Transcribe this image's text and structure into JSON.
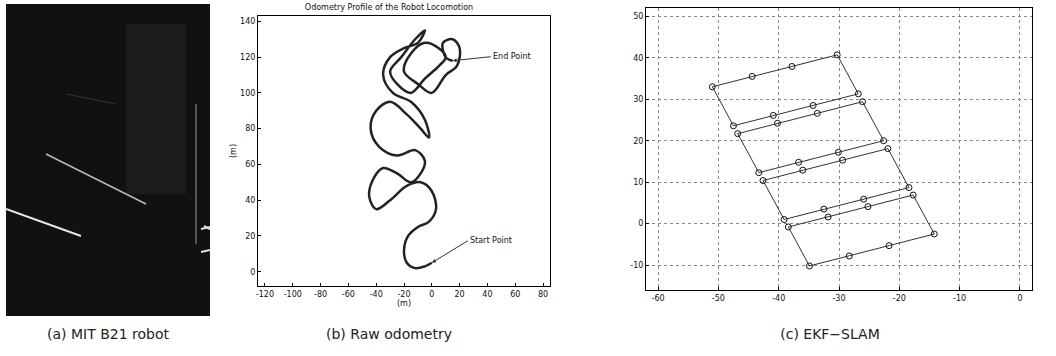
{
  "photo": {
    "caption": "(a) MIT B21 robot"
  },
  "chart_data": [
    {
      "type": "line",
      "title": "Odometry Profile of the Robot Locomotion",
      "caption": "(b) Raw odometry",
      "xlabel": "(m)",
      "ylabel": "(m)",
      "xlim": [
        -125,
        85
      ],
      "ylim": [
        -8,
        143
      ],
      "xticks": [
        -120,
        -100,
        -80,
        -60,
        -40,
        -20,
        0,
        20,
        40,
        60,
        80
      ],
      "yticks": [
        0,
        20,
        40,
        60,
        80,
        100,
        120,
        140
      ],
      "grid": false,
      "series": [
        {
          "color": "#222222",
          "x": [
            0,
            -5,
            -12,
            -18,
            -20,
            -17,
            -10,
            -2,
            3,
            0,
            -8,
            -18,
            -30,
            -40,
            -45,
            -42,
            -35,
            -25,
            -15,
            -8,
            -5,
            -12,
            -25,
            -38,
            -44,
            -40,
            -30,
            -18,
            -8,
            -2,
            -5,
            -15,
            -28,
            -35,
            -30,
            -20,
            -10,
            -5,
            -12,
            -22,
            -30,
            -25,
            -15,
            -5,
            5,
            10,
            5,
            -5,
            -15,
            -20,
            -10,
            0,
            10,
            18,
            20,
            15,
            8,
            10,
            15
          ],
          "y": [
            5,
            3,
            2,
            5,
            12,
            20,
            25,
            28,
            35,
            45,
            50,
            48,
            40,
            35,
            42,
            52,
            58,
            55,
            50,
            55,
            62,
            68,
            65,
            70,
            80,
            90,
            95,
            88,
            80,
            75,
            85,
            95,
            100,
            110,
            120,
            125,
            128,
            135,
            130,
            120,
            112,
            105,
            100,
            108,
            115,
            120,
            125,
            128,
            122,
            112,
            105,
            100,
            110,
            115,
            125,
            130,
            128,
            120,
            118
          ]
        }
      ],
      "annotations": [
        {
          "text": "End Point",
          "x": 15,
          "y": 118
        },
        {
          "text": "Start Point",
          "x": 0,
          "y": 5
        }
      ]
    },
    {
      "type": "scatter",
      "caption": "(c) EKF−SLAM",
      "xlim": [
        -62,
        2
      ],
      "ylim": [
        -16,
        52
      ],
      "xticks": [
        -60,
        -50,
        -40,
        -30,
        -20,
        -10,
        0
      ],
      "yticks": [
        -10,
        0,
        10,
        20,
        30,
        40,
        50
      ],
      "grid": true,
      "series": [
        {
          "type": "line",
          "color": "#333333",
          "x": [
            -51,
            -30.3,
            -26.8,
            -47.5,
            -51,
            null,
            -46.8,
            -26.1,
            -22.6,
            -43.3,
            -46.8,
            null,
            -42.6,
            -21.9,
            -18.4,
            -39.1,
            -42.6,
            null,
            -38.4,
            -17.7,
            -14.2,
            -34.9,
            -38.4
          ],
          "y": [
            33,
            40.7,
            31.3,
            23.6,
            33,
            null,
            21.7,
            29.4,
            20.0,
            12.3,
            21.7,
            null,
            10.4,
            18.1,
            8.7,
            1.0,
            10.4,
            null,
            -0.8,
            6.9,
            -2.5,
            -10.2,
            -0.8
          ]
        },
        {
          "type": "scatter",
          "marker": "circle-open",
          "color": "#111111",
          "x": [
            -51,
            -44.4,
            -37.8,
            -30.3,
            -47.5,
            -40.9,
            -34.3,
            -26.8,
            -46.8,
            -40.2,
            -33.6,
            -26.1,
            -43.3,
            -36.7,
            -30.1,
            -22.6,
            -42.6,
            -36.0,
            -29.4,
            -21.9,
            -39.1,
            -32.5,
            -25.9,
            -18.4,
            -38.4,
            -31.8,
            -25.2,
            -17.7,
            -34.9,
            -28.3,
            -21.7,
            -14.2
          ],
          "y": [
            33,
            35.5,
            37.9,
            40.7,
            23.6,
            26.1,
            28.5,
            31.3,
            21.7,
            24.2,
            26.6,
            29.4,
            12.3,
            14.8,
            17.2,
            20.0,
            10.4,
            12.9,
            15.3,
            18.1,
            1.0,
            3.5,
            5.9,
            8.7,
            -0.8,
            1.6,
            4.1,
            6.9,
            -10.2,
            -7.8,
            -5.3,
            -2.5
          ]
        }
      ]
    }
  ]
}
